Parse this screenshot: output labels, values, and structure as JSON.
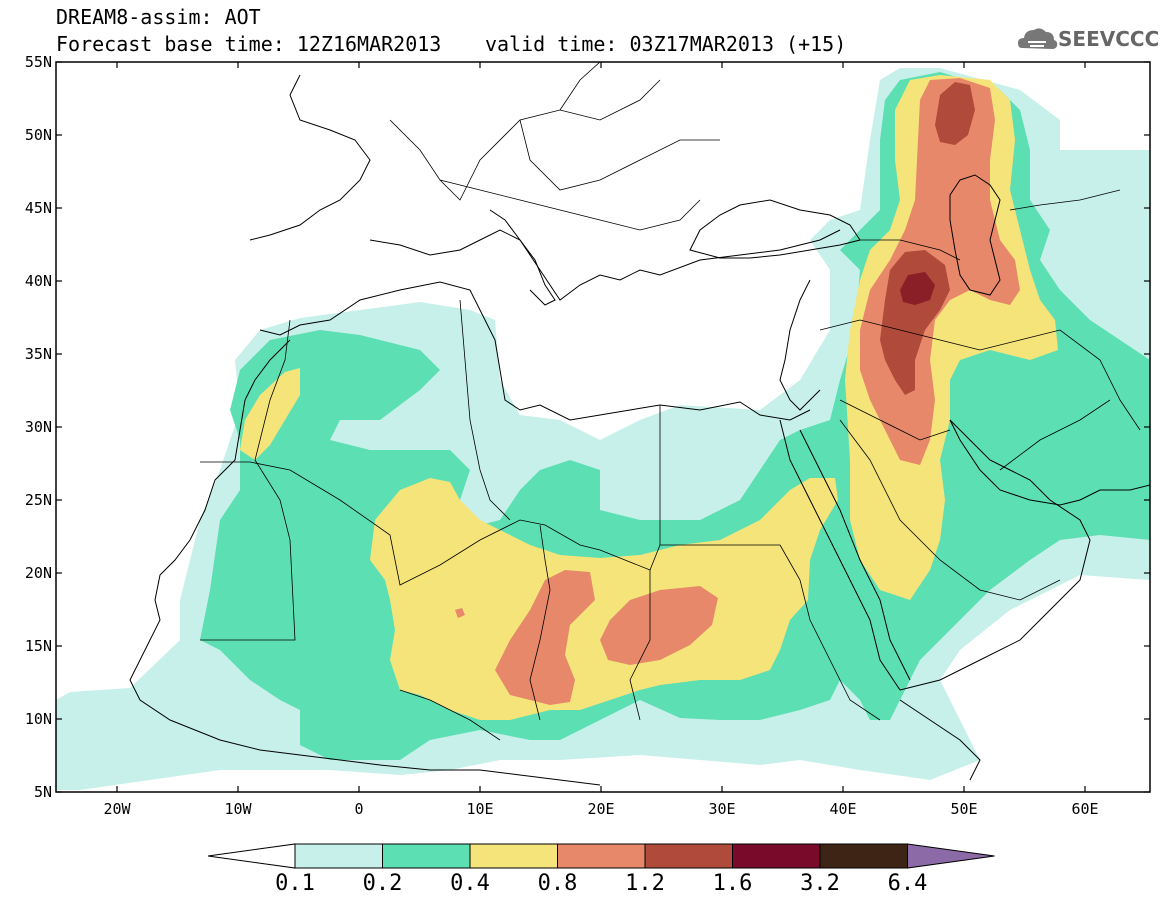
{
  "title": {
    "line1": "DREAM8-assim: AOT",
    "line2": "Forecast base time: 12Z16MAR2013",
    "valid": "valid time: 03Z17MAR2013 (+15)"
  },
  "logo": {
    "text": "SEEVCCC",
    "icon": "cloud-icon"
  },
  "axes": {
    "lat_labels": [
      "55N",
      "50N",
      "45N",
      "40N",
      "35N",
      "30N",
      "25N",
      "20N",
      "15N",
      "10N",
      "5N"
    ],
    "lon_labels": [
      "20W",
      "10W",
      "0",
      "10E",
      "20E",
      "30E",
      "40E",
      "50E",
      "60E"
    ]
  },
  "colorbar": {
    "labels": [
      "0.1",
      "0.2",
      "0.4",
      "0.8",
      "1.2",
      "1.6",
      "3.2",
      "6.4"
    ],
    "colors": [
      "#ffffff",
      "#c7f0ea",
      "#5ddfb4",
      "#f5e47a",
      "#e8886a",
      "#b04a3a",
      "#7a0a2a",
      "#3d2414",
      "#8c6aa8"
    ]
  }
}
